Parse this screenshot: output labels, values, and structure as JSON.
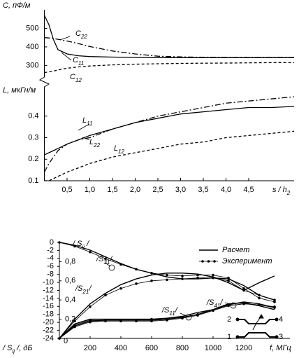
{
  "chart_data": [
    {
      "type": "line",
      "x": [
        0,
        0.1,
        0.2,
        0.3,
        0.5,
        0.75,
        1,
        1.5,
        2,
        2.5,
        3,
        3.5,
        4,
        4.5,
        5,
        5.5
      ],
      "xlim": [
        0,
        5.5
      ],
      "xticks": [
        {
          "value": 0.5,
          "label": "0,5"
        },
        {
          "value": 1,
          "label": "1,0"
        },
        {
          "value": 1.5,
          "label": "1,5"
        },
        {
          "value": 2,
          "label": "2,0"
        },
        {
          "value": 2.5,
          "label": "2,5"
        },
        {
          "value": 3,
          "label": "3,0"
        },
        {
          "value": 3.5,
          "label": "3,5"
        },
        {
          "value": 4,
          "label": "4,0"
        },
        {
          "value": 4.5,
          "label": "4,5"
        }
      ],
      "xlabel": {
        "text": "s / h",
        "sub": "2"
      },
      "panels": [
        {
          "ylabel": "C, пФ/м",
          "ylim": [
            260,
            600
          ],
          "yticks": [
            300,
            400,
            500
          ],
          "series": [
            {
              "label": {
                "text": "C",
                "sub": "11"
              },
              "color": "#000000",
              "dash": "solid",
              "values": [
                570,
                520,
                440,
                385,
                362,
                352,
                348,
                345,
                343,
                342,
                342,
                342,
                342,
                342,
                342,
                342
              ]
            },
            {
              "label": {
                "text": "C",
                "sub": "22"
              },
              "color": "#000000",
              "dash": "dashdot",
              "values": [
                450,
                448,
                445,
                441,
                432,
                418,
                402,
                378,
                362,
                350,
                346,
                344,
                343,
                343,
                343,
                343
              ]
            },
            {
              "label": {
                "text": "C",
                "sub": "12"
              },
              "color": "#000000",
              "dash": "dashed",
              "values": [
                262,
                265,
                270,
                276,
                285,
                292,
                297,
                303,
                307,
                309,
                311,
                312,
                313,
                314,
                315,
                316
              ]
            }
          ]
        },
        {
          "ylabel": "L, мкГн/м",
          "ylim": [
            0.1,
            0.5
          ],
          "yticks": [
            0.1,
            0.2,
            0.3,
            0.4
          ],
          "series": [
            {
              "label": {
                "text": "L",
                "sub": "11"
              },
              "color": "#000000",
              "dash": "solid",
              "values": [
                0.22,
                0.23,
                0.24,
                0.25,
                0.27,
                0.29,
                0.31,
                0.34,
                0.37,
                0.39,
                0.41,
                0.42,
                0.43,
                0.44,
                0.44,
                0.445
              ]
            },
            {
              "label": {
                "text": "L",
                "sub": "22"
              },
              "color": "#000000",
              "dash": "dashdot",
              "values": [
                0.14,
                0.18,
                0.21,
                0.24,
                0.27,
                0.29,
                0.3,
                0.34,
                0.37,
                0.4,
                0.42,
                0.44,
                0.46,
                0.47,
                0.48,
                0.49
              ]
            },
            {
              "label": {
                "text": "L",
                "sub": "12"
              },
              "color": "#000000",
              "dash": "dashed",
              "values": [
                0.1,
                0.1,
                0.11,
                0.12,
                0.14,
                0.16,
                0.18,
                0.21,
                0.23,
                0.25,
                0.27,
                0.28,
                0.3,
                0.31,
                0.32,
                0.33
              ]
            }
          ]
        }
      ]
    },
    {
      "type": "line",
      "x": [
        0,
        100,
        200,
        300,
        400,
        500,
        600,
        700,
        800,
        900,
        1000,
        1100,
        1200,
        1300,
        1400
      ],
      "xlim": [
        0,
        1500
      ],
      "xticks": [
        200,
        400,
        600,
        800,
        1000,
        1200
      ],
      "xlabel": "f, МГц",
      "ylabel": {
        "text": "/ S",
        "sub": "ij",
        "end": " /, дБ"
      },
      "y2label": {
        "text": "/ S",
        "sub": "ij",
        "end": " /"
      },
      "ylim": [
        -24,
        0
      ],
      "yticks": [
        0,
        -2,
        -4,
        -6,
        -8,
        -10,
        -12,
        -14,
        -16,
        -18,
        -20,
        -22,
        -24
      ],
      "y2lim": [
        0,
        1
      ],
      "y2ticks": [
        0,
        {
          "value": 0.2,
          "label": "0,2"
        },
        {
          "value": 0.4,
          "label": "0,4"
        },
        {
          "value": 0.6,
          "label": "0,6"
        },
        {
          "value": 0.8,
          "label": "0,8"
        }
      ],
      "legend": [
        {
          "name": "Расчет",
          "style": "line"
        },
        {
          "name": "Эксперимент",
          "style": "markers"
        }
      ],
      "series": [
        {
          "label": {
            "text": "/S",
            "sub": "31",
            "end": "/"
          },
          "style": "line",
          "axis": "y2",
          "color": "#000000",
          "values": [
            1.0,
            0.97,
            0.92,
            0.85,
            0.78,
            0.72,
            0.68,
            0.64,
            0.62,
            0.62,
            0.63,
            0.62,
            0.55,
            0.45,
            0.4
          ]
        },
        {
          "style": "markers",
          "axis": "y2",
          "color": "#000000",
          "values": [
            1.0,
            0.96,
            0.9,
            0.83,
            0.77,
            0.72,
            0.68,
            0.66,
            0.65,
            0.66,
            0.66,
            0.63,
            0.52,
            0.42,
            0.38
          ]
        },
        {
          "label": {
            "text": "/S",
            "sub": "21",
            "end": "/"
          },
          "style": "line",
          "axis": "y2",
          "color": "#000000",
          "values": [
            0,
            0.2,
            0.36,
            0.47,
            0.56,
            0.62,
            0.66,
            0.68,
            0.68,
            0.67,
            0.64,
            0.58,
            0.5,
            0.58,
            0.65
          ]
        },
        {
          "style": "markers",
          "axis": "y2",
          "color": "#000000",
          "values": [
            0,
            0.18,
            0.33,
            0.45,
            0.52,
            0.57,
            0.6,
            0.61,
            0.62,
            0.63,
            0.63,
            0.6,
            0.5,
            0.45,
            0.4
          ]
        },
        {
          "label": {
            "text": "/S",
            "sub": "11",
            "end": "/"
          },
          "style": "line",
          "axis": "y2",
          "color": "#000000",
          "values": [
            0,
            0.15,
            0.2,
            0.2,
            0.2,
            0.2,
            0.2,
            0.21,
            0.23,
            0.27,
            0.3,
            0.35,
            0.38,
            0.36,
            0.32
          ]
        },
        {
          "style": "markers",
          "axis": "y2",
          "color": "#000000",
          "values": [
            0,
            0.14,
            0.19,
            0.19,
            0.19,
            0.19,
            0.2,
            0.2,
            0.22,
            0.25,
            0.29,
            0.34,
            0.36,
            0.35,
            0.33
          ]
        },
        {
          "label": {
            "text": "/S",
            "sub": "41",
            "end": "/"
          },
          "style": "line",
          "axis": "y2",
          "color": "#000000",
          "values": [
            0,
            0.13,
            0.18,
            0.19,
            0.19,
            0.19,
            0.19,
            0.2,
            0.22,
            0.25,
            0.3,
            0.36,
            0.37,
            0.34,
            0.3
          ]
        },
        {
          "style": "markers",
          "axis": "y2",
          "color": "#000000",
          "values": [
            0,
            0.12,
            0.17,
            0.18,
            0.18,
            0.18,
            0.18,
            0.19,
            0.21,
            0.24,
            0.29,
            0.34,
            0.36,
            0.35,
            0.32
          ]
        }
      ]
    }
  ],
  "diagram": {
    "ports": [
      "2",
      "4",
      "1",
      "3"
    ]
  }
}
